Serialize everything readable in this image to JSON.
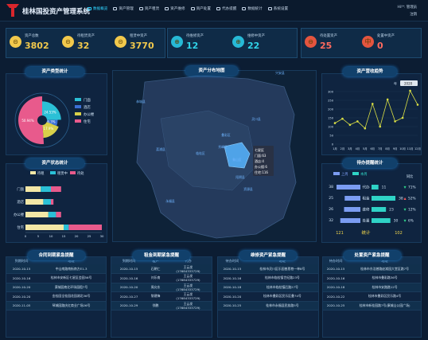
{
  "app": {
    "title": "桂林国投资产管理系统",
    "user_line1": "Hi!*:  管理员",
    "user_line2": "注销"
  },
  "nav": [
    {
      "label": "数据概览",
      "active": true
    },
    {
      "label": "资产管理"
    },
    {
      "label": "资产租赁"
    },
    {
      "label": "资产维修"
    },
    {
      "label": "资产处置"
    },
    {
      "label": "代办提醒"
    },
    {
      "label": "数据统计"
    },
    {
      "label": "系统设置"
    }
  ],
  "kpi": [
    {
      "label": "资产总数",
      "value": "3802",
      "color": "#f2c94c",
      "icon": "#f2c94c",
      "glyph": "⊝"
    },
    {
      "label": "待租赁资产",
      "value": "32",
      "color": "#f2c94c",
      "icon": "#f2c94c",
      "glyph": "⊝"
    },
    {
      "label": "租赁中资产",
      "value": "3770",
      "color": "#f2c94c",
      "icon": "#f2c94c",
      "glyph": "⊝"
    },
    {
      "label": "待维修资产",
      "value": "12",
      "color": "#2fd3e8",
      "icon": "#27b9d6",
      "glyph": "⊕"
    },
    {
      "label": "维修中资产",
      "value": "22",
      "color": "#2fd3e8",
      "icon": "#27b9d6",
      "glyph": "⊕"
    },
    {
      "label": "待处置资产",
      "value": "25",
      "color": "#ff6a5e",
      "icon": "#e4553f",
      "glyph": "⊖"
    },
    {
      "label": "处置中资产",
      "value": "0",
      "color": "#ff6a5e",
      "icon": "#e4553f",
      "glyph": "中"
    }
  ],
  "panels": {
    "type": "资产类型统计",
    "map": "资产分布地图",
    "trend": "资产营收趋势",
    "status": "资产状态统计",
    "remind": "待办提醒统计"
  },
  "type_chart": {
    "type": "pie",
    "labels": [
      "门面",
      "酒店",
      "办公楼",
      "住宅"
    ],
    "values": [
      24.53,
      6.3,
      17.9,
      50.94
    ],
    "colors": [
      "#2bc0d6",
      "#3b6fd6",
      "#d8d04a",
      "#e85a8c"
    ],
    "label_texts": [
      "24.53%",
      "6.3%",
      "17.9%",
      "50.94%"
    ]
  },
  "map": {
    "labels": [
      "兴安县",
      "灵川县",
      "临桂区",
      "阳朔县",
      "永福县",
      "恭城县",
      "荔浦县",
      "资源县",
      "叠彩区",
      "秀峰区",
      "象山区"
    ],
    "tooltip": [
      "七星区",
      "门面:63",
      "酒店:4",
      "办公楼:6",
      "住宅:116"
    ]
  },
  "trend": {
    "select": "2020",
    "chart_data": {
      "type": "line",
      "x": [
        "1月",
        "2月",
        "3月",
        "4月",
        "5月",
        "6月",
        "7月",
        "8月",
        "9月",
        "10月",
        "11月",
        "12月"
      ],
      "values": [
        120,
        145,
        110,
        130,
        90,
        230,
        100,
        255,
        130,
        150,
        305,
        225
      ],
      "ylim": [
        0,
        300
      ],
      "yticks": [
        0,
        50,
        100,
        150,
        200,
        250,
        300
      ]
    }
  },
  "status_chart": {
    "type": "bar",
    "legend": [
      "待租",
      "租赁中",
      "待处"
    ],
    "colors": [
      "#f3e7a6",
      "#2bc0d6",
      "#e85a8c"
    ],
    "categories": [
      "门面",
      "酒店",
      "办公楼",
      "住宅"
    ],
    "series": [
      [
        6,
        4,
        4
      ],
      [
        7,
        3,
        1
      ],
      [
        9,
        3,
        2
      ],
      [
        15,
        2,
        13
      ]
    ],
    "xticks": [
      0,
      5,
      10,
      15,
      20,
      25,
      30
    ]
  },
  "remind": {
    "legend": [
      "上周",
      "本周"
    ],
    "colors": [
      "#7b9cf2",
      "#2fd3c6"
    ],
    "rows": [
      {
        "left": "38",
        "label": "代办",
        "right": "11",
        "change": "71%",
        "up": false
      },
      {
        "left": "25",
        "label": "租金",
        "right": "38",
        "change": "52%",
        "up": true
      },
      {
        "left": "26",
        "label": "维修",
        "right": "23",
        "change": "12%",
        "up": false
      },
      {
        "left": "32",
        "label": "处置",
        "right": "30",
        "change": "6%",
        "up": false
      }
    ],
    "change_head": "同比",
    "total_left": "121",
    "total_label": "统计",
    "total_right": "102"
  },
  "tables": [
    {
      "title": "合同到期紧急提醒",
      "cols": [
        "到期时间",
        "地址"
      ],
      "rows": [
        [
          "2020-10-15",
          "中山南路南街南方E1-3"
        ],
        [
          "2020-10-16",
          "桂林市安新区七星区会园56号"
        ],
        [
          "2020-10-20",
          "葵城园南北环场园租7号"
        ],
        [
          "2020-10-20",
          "金桂园全桂园花园湖北36号"
        ],
        [
          "2020-11-05",
          "琴城园路庆红商业广场26号"
        ]
      ]
    },
    {
      "title": "租金到期紧急提醒",
      "cols": [
        "到期时间",
        "租户",
        "代办"
      ],
      "rows": [
        [
          "2020-10-15",
          "石朝仁",
          "王云发\n(17684333729)"
        ],
        [
          "2020-10-16",
          "刘乐南",
          "王云发\n(17684333729)"
        ],
        [
          "2020-10-20",
          "周允东",
          "王云发\n(17684333729)"
        ],
        [
          "2020-10-27",
          "黎建锋",
          "王云发\n(17684333729)"
        ],
        [
          "2020-10-29",
          "徐鹏",
          "王云发\n(17684333729)"
        ]
      ]
    },
    {
      "title": "维修资产紧急提醒",
      "cols": [
        "待办时间",
        "地址"
      ],
      "rows": [
        [
          "2020-10-15",
          "桂林市灵川区乐园普恩巷一单8号"
        ],
        [
          "2020-10-16",
          "桂林市临桂镇世纪路23号"
        ],
        [
          "2020-10-18",
          "桂林市临桂镇后路27号"
        ],
        [
          "2020-10-20",
          "桂林市叠彩区民乐区叠74号"
        ],
        [
          "2020-10-25",
          "桂林市永福县民族路5号"
        ]
      ]
    },
    {
      "title": "处置资产紧急提醒",
      "cols": [
        "待办时间",
        "地址"
      ],
      "rows": [
        [
          "2020-10-15",
          "桂林市东浩曾路赵嵩园大堂区路7号"
        ],
        [
          "2020-10-16",
          "桂林市叠彩路36号"
        ],
        [
          "2020-10-18",
          "桂林市安路路12号"
        ],
        [
          "2020-10-22",
          "桂林市叠彩区民乐路4号"
        ],
        [
          "2020-10-25",
          "桂林市新桂园路7号(康城山公园广场)"
        ]
      ]
    }
  ]
}
